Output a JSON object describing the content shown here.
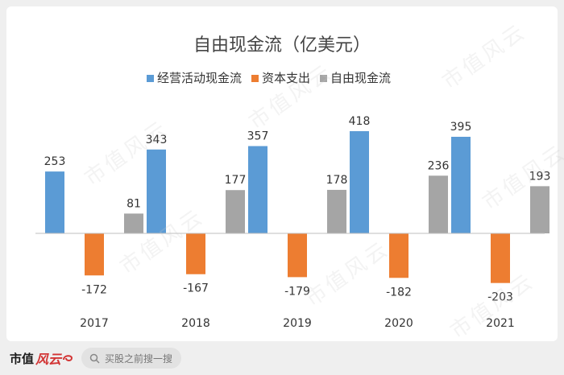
{
  "chart_data": {
    "type": "bar",
    "title": "自由现金流（亿美元）",
    "categories": [
      "2017",
      "2018",
      "2019",
      "2020",
      "2021"
    ],
    "series": [
      {
        "name": "经营活动现金流",
        "color": "#5b9bd5",
        "values": [
          253,
          343,
          357,
          418,
          395
        ]
      },
      {
        "name": "资本支出",
        "color": "#ed7d31",
        "values": [
          -172,
          -167,
          -179,
          -182,
          -203
        ]
      },
      {
        "name": "自由现金流",
        "color": "#a5a5a5",
        "values": [
          81,
          177,
          178,
          236,
          193
        ]
      }
    ],
    "legend_position": "top",
    "grid": false
  },
  "watermark_text": "市值风云",
  "footer": {
    "brand_text": "市值",
    "brand_script": "风云",
    "search_placeholder": "买股之前搜一搜",
    "search_icon": "search-icon"
  }
}
